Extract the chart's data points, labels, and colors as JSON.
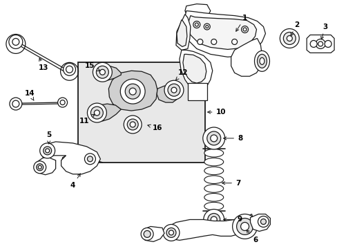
{
  "bg_color": "#ffffff",
  "line_color": "#1a1a1a",
  "box_fill": "#e0e0e0",
  "figsize": [
    4.89,
    3.6
  ],
  "dpi": 100,
  "lw": 0.9,
  "fontsize": 7.5
}
